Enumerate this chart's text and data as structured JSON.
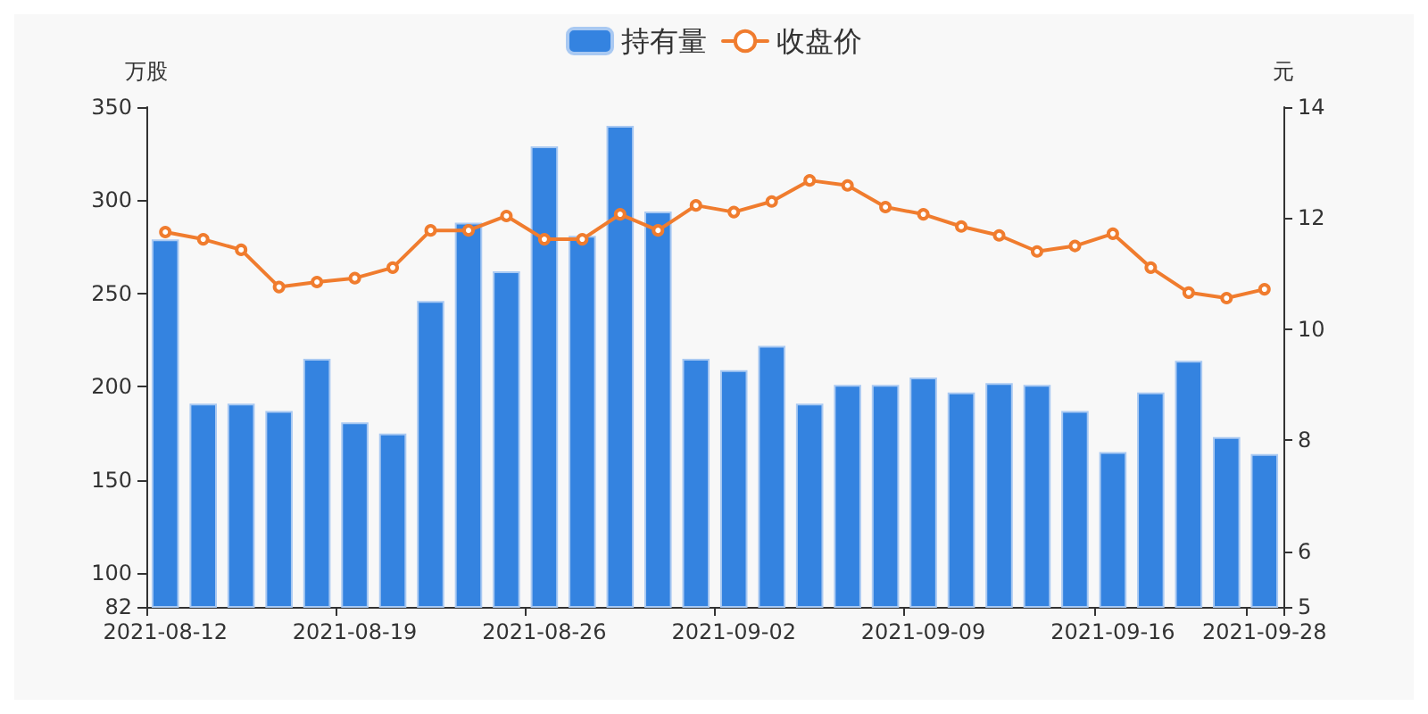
{
  "chart_data": {
    "type": "bar",
    "categories": [
      "2021-08-12",
      null,
      null,
      null,
      null,
      "2021-08-19",
      null,
      null,
      null,
      null,
      "2021-08-26",
      null,
      null,
      null,
      null,
      "2021-09-02",
      null,
      null,
      null,
      null,
      "2021-09-09",
      null,
      null,
      null,
      null,
      "2021-09-16",
      null,
      null,
      null,
      "2021-09-28"
    ],
    "ylabel": "万股",
    "y2label": "元",
    "series": [
      {
        "name": "持有量",
        "color": "#3483e0",
        "values": [
          279,
          191,
          191,
          187,
          215,
          181,
          175,
          246,
          288,
          262,
          329,
          281,
          340,
          294,
          215,
          209,
          222,
          191,
          201,
          201,
          205,
          197,
          202,
          201,
          187,
          165,
          197,
          214,
          173,
          164
        ]
      },
      {
        "name": "收盘价",
        "type": "line",
        "axis": "y2",
        "color": "#f07c2e",
        "marker": "circle",
        "values": [
          11.75,
          11.62,
          11.43,
          10.76,
          10.85,
          10.92,
          11.11,
          11.78,
          11.78,
          12.04,
          11.62,
          11.62,
          12.07,
          11.78,
          12.23,
          12.11,
          12.3,
          12.68,
          12.59,
          12.2,
          12.07,
          11.85,
          11.69,
          11.4,
          11.5,
          11.72,
          11.11,
          10.66,
          10.56,
          10.72
        ]
      }
    ],
    "ylim": [
      82,
      350
    ],
    "yticks": [
      82,
      100,
      150,
      200,
      250,
      300,
      350
    ],
    "y2lim": [
      5,
      14
    ],
    "y2ticks": [
      5,
      6,
      8,
      10,
      12,
      14
    ],
    "grid": false,
    "legend": "top"
  }
}
